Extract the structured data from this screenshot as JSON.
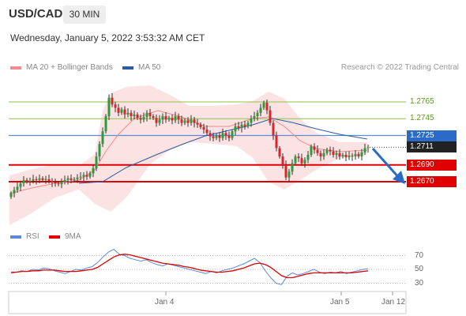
{
  "header": {
    "symbol": "USD/CAD",
    "timeframe": "30 MIN",
    "datetime": "Wednesday, January 5, 2022 3:53:32 AM CET"
  },
  "legend": {
    "ma20_label": "MA 20 + Bollinger Bands",
    "ma50_label": "MA 50",
    "credit": "Research © 2022 Trading Central"
  },
  "rsi_legend": {
    "rsi_label": "RSI",
    "ma9_label": "9MA"
  },
  "colors": {
    "bollinger": "#f28b8b",
    "ma50": "#2d5aa0",
    "resistance": "#8dc63f",
    "pivot": "#5b8bd6",
    "support": "#e00000",
    "price_box": "#222222",
    "rsi": "#5b8bd6",
    "rsi_ma": "#e00000"
  },
  "chart_data": [
    {
      "type": "candlestick",
      "title": "USD/CAD 30 MIN",
      "x_labels": [
        "Jan 4",
        "Jan 5",
        "Jan 12"
      ],
      "y_levels": {
        "resistance": [
          1.2765,
          1.2745
        ],
        "pivot": 1.2725,
        "last_price": 1.2711,
        "support": [
          1.269,
          1.267
        ]
      },
      "ylim": [
        1.264,
        1.279
      ],
      "forecast": "down to 1.2670",
      "series": [
        {
          "name": "MA 20 + Bollinger Bands"
        },
        {
          "name": "MA 50"
        }
      ]
    },
    {
      "type": "line",
      "series": [
        {
          "name": "RSI"
        },
        {
          "name": "9MA"
        }
      ],
      "ylim": [
        20,
        80
      ],
      "y_ticks": [
        70,
        50,
        30
      ],
      "x_labels": [
        "Jan 4",
        "Jan 5",
        "Jan 12"
      ]
    }
  ],
  "levels": [
    {
      "id": "r2",
      "label": "1.2765",
      "value": 1.2765,
      "kind": "resistance"
    },
    {
      "id": "r1",
      "label": "1.2745",
      "value": 1.2745,
      "kind": "resistance"
    },
    {
      "id": "pivot",
      "label": "1.2725",
      "value": 1.2725,
      "kind": "pivot"
    },
    {
      "id": "last",
      "label": "1.2711",
      "value": 1.2711,
      "kind": "last"
    },
    {
      "id": "s1",
      "label": "1.2690",
      "value": 1.269,
      "kind": "support"
    },
    {
      "id": "s2",
      "label": "1.2670",
      "value": 1.267,
      "kind": "support"
    }
  ],
  "rsi_ticks": [
    "70",
    "50",
    "30"
  ],
  "x_ticks": [
    "Jan 4",
    "Jan 5",
    "Jan 12"
  ]
}
